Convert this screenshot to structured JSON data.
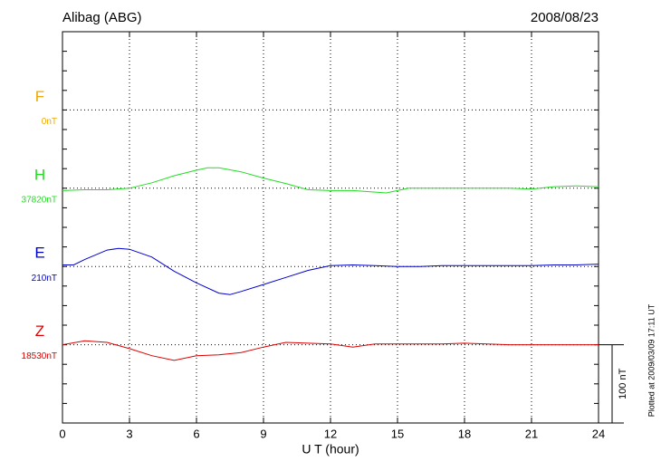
{
  "chart_data": {
    "type": "line",
    "title": "Alibag (ABG)",
    "date": "2008/08/23",
    "xlabel": "U T (hour)",
    "footnote": "Plotted at 2009/03/09 17:11 UT",
    "xlim": [
      0,
      24
    ],
    "xticks": [
      0,
      3,
      6,
      9,
      12,
      15,
      18,
      21,
      24
    ],
    "grid": true,
    "scale_bar": {
      "value": 100,
      "label": "100 nT"
    },
    "series": [
      {
        "name": "F",
        "color": "#f0a800",
        "baseline": {
          "value": 0,
          "label": "0nT"
        },
        "x": [
          0,
          24
        ],
        "values": [
          null,
          null
        ]
      },
      {
        "name": "H",
        "color": "#22dd22",
        "baseline": {
          "value": 37820,
          "label": "37820nT"
        },
        "x": [
          0,
          1,
          2,
          3,
          4,
          5,
          6,
          6.5,
          7,
          8,
          9,
          10,
          11,
          12,
          13,
          14,
          14.5,
          15,
          15.5,
          16,
          17,
          18,
          19,
          20,
          21,
          22,
          23,
          24
        ],
        "values": [
          37817,
          37818,
          37818,
          37820,
          37827,
          37836,
          37843,
          37846,
          37846,
          37841,
          37833,
          37826,
          37818,
          37817,
          37817,
          37815,
          37814,
          37817,
          37820,
          37820,
          37820,
          37820,
          37820,
          37820,
          37819,
          37822,
          37823,
          37822
        ]
      },
      {
        "name": "E",
        "color": "#0000cc",
        "baseline": {
          "value": 210,
          "label": "210nT"
        },
        "x": [
          0,
          0.5,
          1,
          2,
          2.5,
          3,
          4,
          5,
          6,
          7,
          7.5,
          8,
          9,
          10,
          11,
          12,
          13,
          14,
          15,
          16,
          17,
          18,
          19,
          20,
          21,
          22,
          23,
          24
        ],
        "values": [
          212,
          212,
          219,
          231,
          233,
          232,
          222,
          204,
          189,
          176,
          174,
          178,
          187,
          196,
          205,
          211,
          212,
          211,
          210,
          210,
          211,
          211,
          211,
          211,
          211,
          212,
          212,
          213
        ]
      },
      {
        "name": "Z",
        "color": "#dd0000",
        "baseline": {
          "value": 18530,
          "label": "18530nT"
        },
        "x": [
          0,
          1,
          2,
          3,
          4,
          5,
          6,
          7,
          8,
          9,
          10,
          11,
          12,
          13,
          14,
          15,
          16,
          17,
          18,
          19,
          20,
          21,
          22,
          23,
          24
        ],
        "values": [
          18530,
          18535,
          18533,
          18525,
          18516,
          18510,
          18516,
          18517,
          18520,
          18527,
          18533,
          18532,
          18531,
          18527,
          18531,
          18531,
          18531,
          18531,
          18532,
          18531,
          18530,
          18530,
          18530,
          18530,
          18530
        ]
      }
    ]
  }
}
